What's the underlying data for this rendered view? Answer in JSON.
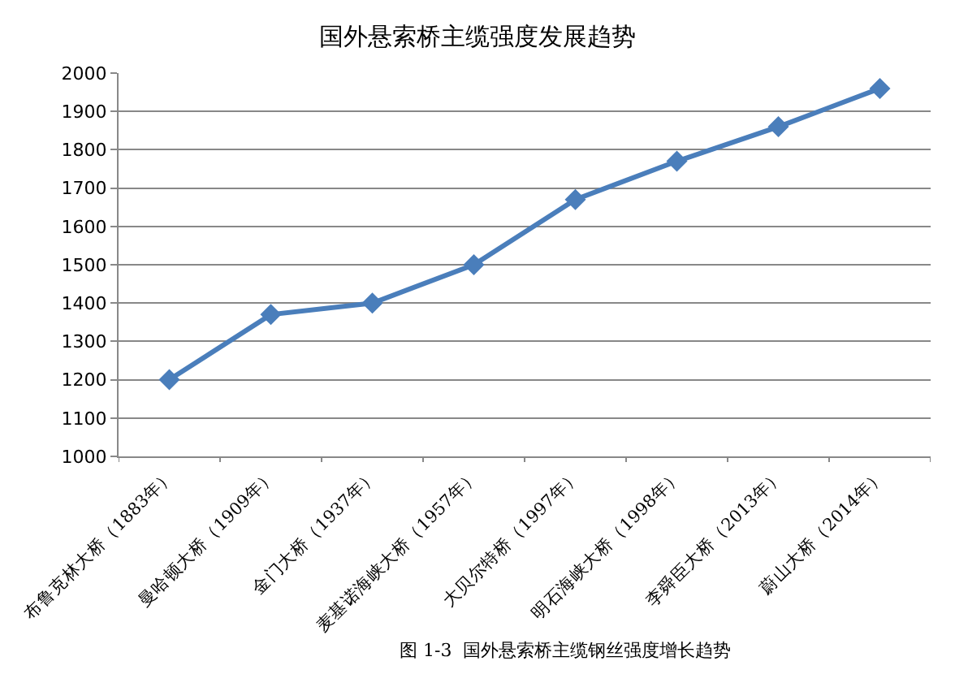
{
  "chart_data": {
    "type": "line",
    "title": "国外悬索桥主缆强度发展趋势",
    "categories": [
      "布鲁克林大桥（1883年）",
      "曼哈顿大桥（1909年）",
      "金门大桥（1937年）",
      "麦基诺海峡大桥（1957年）",
      "大贝尔特桥（1997年）",
      "明石海峡大桥（1998年）",
      "李舜臣大桥（2013年）",
      "蔚山大桥（2014年）"
    ],
    "series": [
      {
        "color": "#4a7ebb",
        "values": [
          1200,
          1370,
          1400,
          1500,
          1670,
          1770,
          1860,
          1960
        ]
      }
    ],
    "ylim": [
      1000,
      2000
    ],
    "yticks": [
      1000,
      1100,
      1200,
      1300,
      1400,
      1500,
      1600,
      1700,
      1800,
      1900,
      2000
    ],
    "grid": "y",
    "marker": "diamond",
    "line_style": "solid",
    "legend": false,
    "annotations": [
      "图 1-3  国外悬索桥主缆钢丝强度增长趋势"
    ]
  }
}
